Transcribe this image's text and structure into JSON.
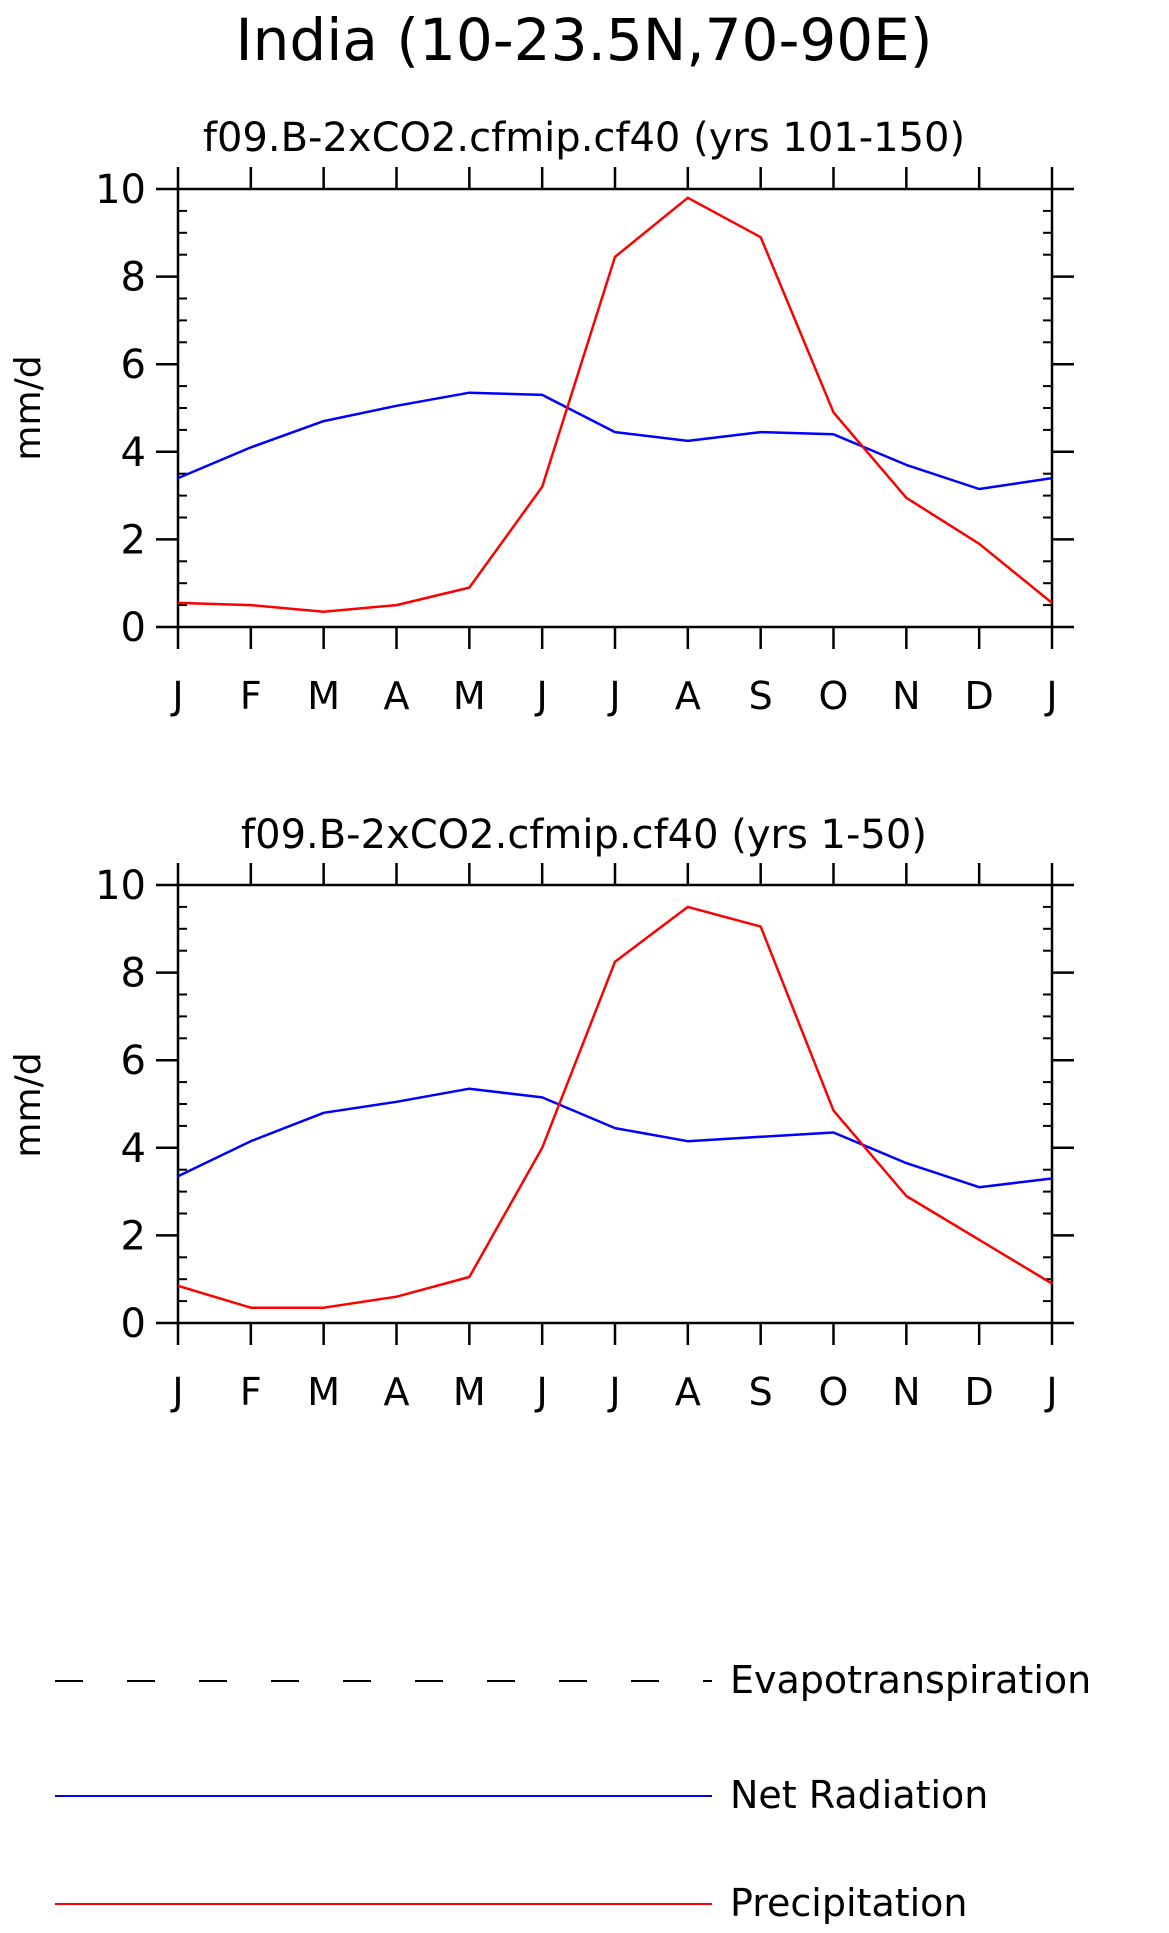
{
  "figure": {
    "title": "India (10-23.5N,70-90E)"
  },
  "chart_data": [
    {
      "type": "line",
      "title": "f09.B-2xCO2.cfmip.cf40 (yrs 101-150)",
      "ylabel": "mm/d",
      "xlabel": "",
      "ylim": [
        0,
        10
      ],
      "yticks": [
        0,
        2,
        4,
        6,
        8,
        10
      ],
      "grid": false,
      "categories": [
        "J",
        "F",
        "M",
        "A",
        "M",
        "J",
        "J",
        "A",
        "S",
        "O",
        "N",
        "D",
        "J"
      ],
      "series": [
        {
          "name": "Net Radiation",
          "color": "#0000ff",
          "values": [
            3.4,
            4.1,
            4.7,
            5.05,
            5.35,
            5.3,
            4.45,
            4.25,
            4.45,
            4.4,
            3.7,
            3.15,
            3.4
          ]
        },
        {
          "name": "Precipitation",
          "color": "#ff0000",
          "values": [
            0.55,
            0.5,
            0.35,
            0.5,
            0.9,
            3.2,
            8.45,
            9.8,
            8.9,
            4.9,
            2.95,
            1.9,
            0.55
          ]
        }
      ]
    },
    {
      "type": "line",
      "title": "f09.B-2xCO2.cfmip.cf40 (yrs 1-50)",
      "ylabel": "mm/d",
      "xlabel": "",
      "ylim": [
        0,
        10
      ],
      "yticks": [
        0,
        2,
        4,
        6,
        8,
        10
      ],
      "grid": false,
      "categories": [
        "J",
        "F",
        "M",
        "A",
        "M",
        "J",
        "J",
        "A",
        "S",
        "O",
        "N",
        "D",
        "J"
      ],
      "series": [
        {
          "name": "Net Radiation",
          "color": "#0000ff",
          "values": [
            3.35,
            4.15,
            4.8,
            5.05,
            5.35,
            5.15,
            4.45,
            4.15,
            4.25,
            4.35,
            3.65,
            3.1,
            3.3
          ]
        },
        {
          "name": "Precipitation",
          "color": "#ff0000",
          "values": [
            0.85,
            0.35,
            0.35,
            0.6,
            1.05,
            4.0,
            8.25,
            9.5,
            9.05,
            4.85,
            2.9,
            1.9,
            0.9
          ]
        }
      ]
    }
  ],
  "legend": {
    "placement": "bottom",
    "items": [
      {
        "label": "Evapotranspiration",
        "color": "#000000",
        "style": "dashed"
      },
      {
        "label": "Net Radiation",
        "color": "#0000ff",
        "style": "solid"
      },
      {
        "label": "Precipitation",
        "color": "#ff0000",
        "style": "solid"
      }
    ]
  }
}
